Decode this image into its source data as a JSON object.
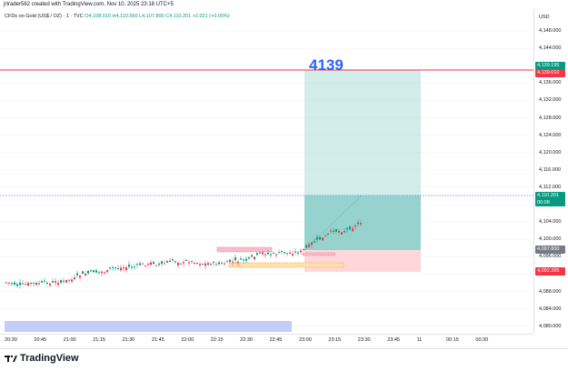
{
  "header": {
    "caption": "jrtrader562 created with TradingView.com, Nov 10, 2025 23:18 UTC+5"
  },
  "legend": {
    "symbol": "CFDs on Gold (US$ / OZ) · 1 · TVC",
    "ohlc": "O4,108.010  H4,110.560  L4,107.800  C4,110.201  +2.021 (+0.05%)"
  },
  "price_axis": {
    "currency": "USD",
    "ticks": [
      "4,148.000",
      "4,144.000",
      "4,140.000",
      "4,136.000",
      "4,132.000",
      "4,128.000",
      "4,124.000",
      "4,120.000",
      "4,116.000",
      "4,112.000",
      "4,108.000",
      "4,104.000",
      "4,100.000",
      "4,096.000",
      "4,092.000",
      "4,088.000",
      "4,084.000",
      "4,080.000"
    ],
    "labels": {
      "target_top": "4,139.195",
      "target_line": "4,139.010",
      "current": "4,110.201",
      "countdown": "00:08",
      "entry": "4,097.800",
      "stop": "4,092.395"
    }
  },
  "time_axis": [
    "20:30",
    "20:45",
    "21:00",
    "21:15",
    "21:30",
    "21:45",
    "22:00",
    "22:15",
    "22:30",
    "22:45",
    "23:00",
    "23:15",
    "23:30",
    "23:45",
    "11",
    "00:15",
    "00:30"
  ],
  "annotation": {
    "target_text": "4139"
  },
  "footer": {
    "brand": "TradingView"
  },
  "colors": {
    "up": "#089981",
    "down": "#f23645",
    "target_line": "#f23645",
    "profit_zone": "#b2dfdb",
    "loss_zone": "#ffcdd2",
    "blue_zone": "#aab8f5",
    "accent": "#2962ff"
  }
}
